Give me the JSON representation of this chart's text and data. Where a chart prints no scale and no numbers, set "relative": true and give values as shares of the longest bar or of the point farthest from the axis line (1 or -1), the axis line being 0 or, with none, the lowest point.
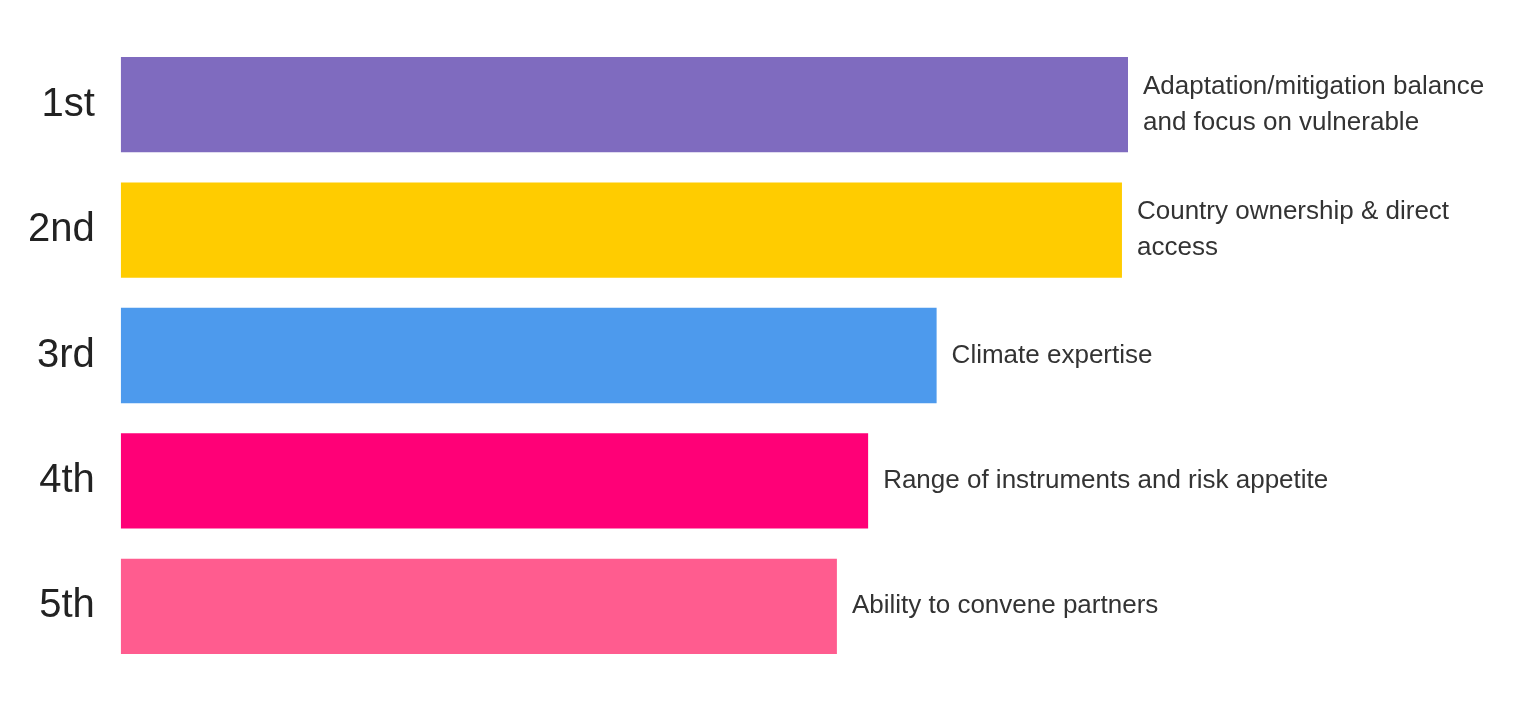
{
  "chart_data": {
    "type": "bar",
    "orientation": "horizontal",
    "relative": true,
    "categories": [
      "1st",
      "2nd",
      "3rd",
      "4th",
      "5th"
    ],
    "values": [
      1,
      0.994,
      0.81,
      0.742,
      0.711
    ],
    "colors": [
      "#7f6bbf",
      "#ffcc00",
      "#4d9aed",
      "#ff0077",
      "#ff5c8f"
    ],
    "annotations": [
      {
        "text": "Adaptation/mitigation balance and focus on vulnerable",
        "x": 1,
        "y": "1st"
      },
      {
        "text": "Country ownership & direct access",
        "x": 0.994,
        "y": "2nd"
      },
      {
        "text": "Climate expertise",
        "x": 0.81,
        "y": "3rd"
      },
      {
        "text": "Range of instruments and risk appetite",
        "x": 0.742,
        "y": "4th"
      },
      {
        "text": "Ability to convene partners",
        "x": 0.711,
        "y": "5th"
      }
    ]
  }
}
